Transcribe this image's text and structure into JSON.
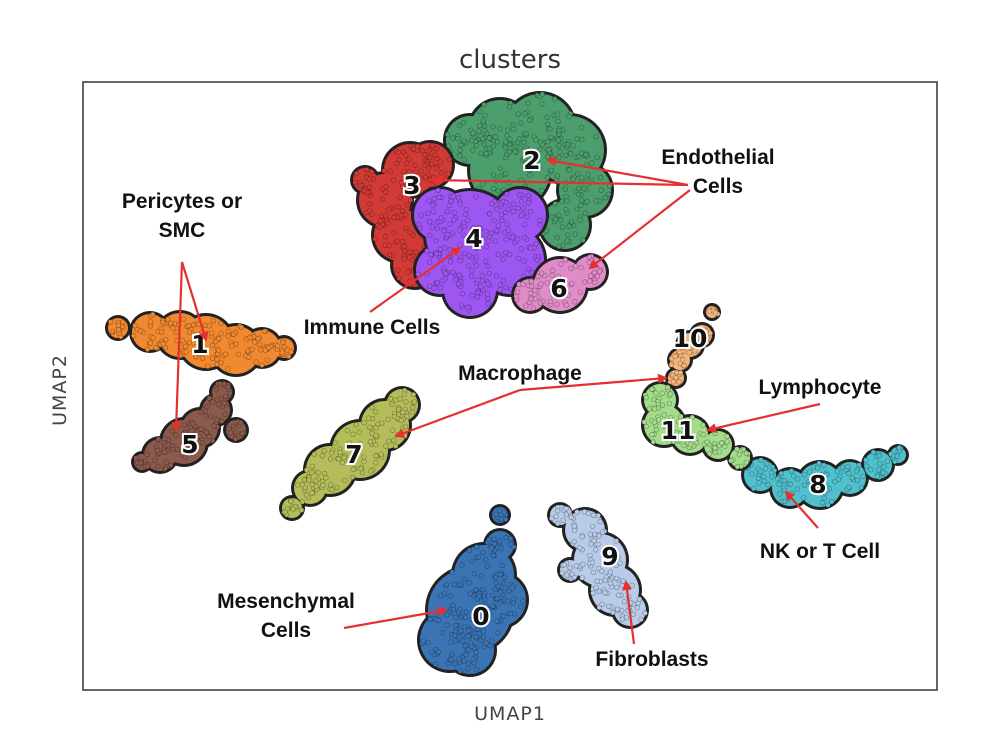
{
  "chart_data": {
    "type": "scatter",
    "title": "clusters",
    "xlabel": "UMAP1",
    "ylabel": "UMAP2",
    "grid": false,
    "legend": "none",
    "clusters": [
      {
        "id": "0",
        "color": "#3a74b4"
      },
      {
        "id": "1",
        "color": "#f0892f"
      },
      {
        "id": "2",
        "color": "#4c9e6c"
      },
      {
        "id": "3",
        "color": "#d23a35"
      },
      {
        "id": "4",
        "color": "#9d56f2"
      },
      {
        "id": "5",
        "color": "#8c5a4d"
      },
      {
        "id": "6",
        "color": "#e08cc8"
      },
      {
        "id": "7",
        "color": "#b5bd5a"
      },
      {
        "id": "8",
        "color": "#4fc0cc"
      },
      {
        "id": "9",
        "color": "#b8cbe8"
      },
      {
        "id": "10",
        "color": "#f4b67a"
      },
      {
        "id": "11",
        "color": "#a3dc8a"
      }
    ],
    "annotations": [
      {
        "lines": [
          "Endothelial",
          "Cells"
        ],
        "targets": [
          "2",
          "3",
          "6"
        ]
      },
      {
        "lines": [
          "Pericytes or",
          "SMC"
        ],
        "targets": [
          "1",
          "5"
        ]
      },
      {
        "lines": [
          "Immune Cells"
        ],
        "targets": [
          "4"
        ]
      },
      {
        "lines": [
          "Macrophage"
        ],
        "targets": [
          "7",
          "10"
        ]
      },
      {
        "lines": [
          "Lymphocyte"
        ],
        "targets": [
          "11"
        ]
      },
      {
        "lines": [
          "NK or T Cell"
        ],
        "targets": [
          "8"
        ]
      },
      {
        "lines": [
          "Mesenchymal",
          "Cells"
        ],
        "targets": [
          "0"
        ]
      },
      {
        "lines": [
          "Fibroblasts"
        ],
        "targets": [
          "9"
        ]
      }
    ]
  }
}
